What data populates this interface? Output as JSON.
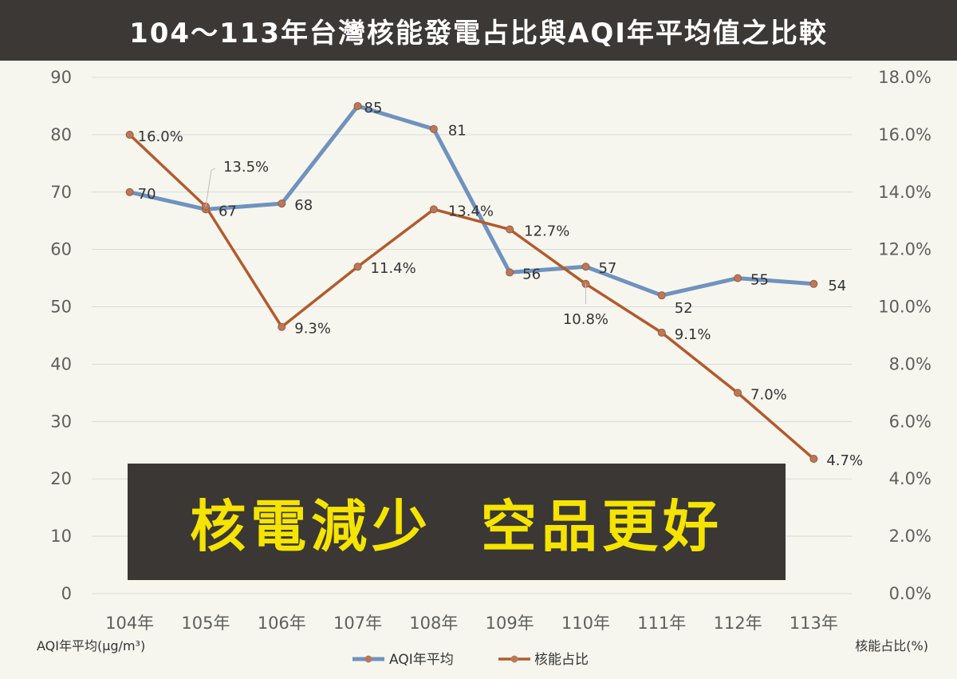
{
  "title": "104～113年台灣核能發電占比與AQI年平均值之比較",
  "slogan": "核電減少  空品更好",
  "chart_data": {
    "type": "line",
    "title": "104～113年台灣核能發電占比與AQI年平均值之比較",
    "categories": [
      "104年",
      "105年",
      "106年",
      "107年",
      "108年",
      "109年",
      "110年",
      "111年",
      "112年",
      "113年"
    ],
    "y_left": {
      "label": "AQI年平均(μg/m³)",
      "range": [
        0,
        90
      ],
      "ticks": [
        "0",
        "10",
        "20",
        "30",
        "40",
        "50",
        "60",
        "70",
        "80",
        "90"
      ]
    },
    "y_right": {
      "label": "核能占比(%)",
      "range": [
        0,
        18
      ],
      "ticks": [
        "0.0%",
        "2.0%",
        "4.0%",
        "6.0%",
        "8.0%",
        "10.0%",
        "12.0%",
        "14.0%",
        "16.0%",
        "18.0%"
      ]
    },
    "series": [
      {
        "name": "AQI年平均",
        "axis": "left",
        "color": "#7092be",
        "values": [
          70,
          67,
          68,
          85,
          81,
          56,
          57,
          52,
          55,
          54
        ],
        "labels": [
          "70",
          "67",
          "68",
          "85",
          "81",
          "56",
          "57",
          "52",
          "55",
          "54"
        ]
      },
      {
        "name": "核能占比",
        "axis": "right",
        "color": "#b35a2c",
        "values": [
          16.0,
          13.5,
          9.3,
          11.4,
          13.4,
          12.7,
          10.8,
          9.1,
          7.0,
          4.7
        ],
        "labels": [
          "16.0%",
          "13.5%",
          "9.3%",
          "11.4%",
          "13.4%",
          "12.7%",
          "10.8%",
          "9.1%",
          "7.0%",
          "4.7%"
        ]
      }
    ],
    "grid": true,
    "legend_position": "bottom"
  }
}
